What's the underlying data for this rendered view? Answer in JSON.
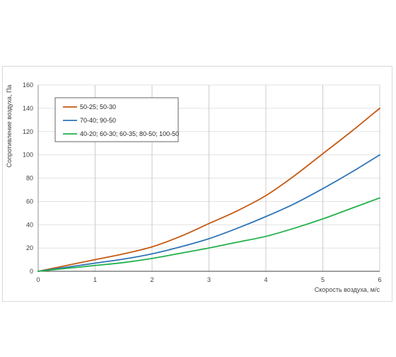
{
  "chart_data": {
    "type": "line",
    "title": "",
    "xlabel": "Скорость воздуха, м/с",
    "ylabel": "Сопротивление воздуха, Па",
    "xlim": [
      0,
      6
    ],
    "ylim": [
      0,
      160
    ],
    "x_ticks": [
      "0",
      "1",
      "2",
      "3",
      "4",
      "5",
      "6"
    ],
    "y_ticks": [
      "0",
      "20",
      "40",
      "60",
      "80",
      "100",
      "120",
      "140",
      "160"
    ],
    "grid": true,
    "legend_position": "top-left",
    "series": [
      {
        "name": "50-25; 50-30",
        "color": "#c55a11",
        "x": [
          0,
          0.5,
          1,
          1.5,
          2,
          2.5,
          3,
          3.5,
          4,
          4.5,
          5,
          5.5,
          6
        ],
        "y": [
          0,
          5,
          10,
          15,
          21,
          30,
          41,
          52,
          65,
          82,
          101,
          120,
          140
        ]
      },
      {
        "name": "70-40; 90-50",
        "color": "#2e75b6",
        "x": [
          0,
          0.5,
          1,
          1.5,
          2,
          2.5,
          3,
          3.5,
          4,
          4.5,
          5,
          5.5,
          6
        ],
        "y": [
          0,
          3.5,
          7,
          10.5,
          15,
          21,
          28,
          37,
          47,
          58,
          71,
          85,
          100
        ]
      },
      {
        "name": "40-20; 60-30; 60-35; 80-50; 100-50",
        "color": "#22b14c",
        "x": [
          0,
          0.5,
          1,
          1.5,
          2,
          2.5,
          3,
          3.5,
          4,
          4.5,
          5,
          5.5,
          6
        ],
        "y": [
          0,
          2.5,
          5,
          7.5,
          11,
          15.5,
          20,
          25,
          30,
          37,
          45,
          54,
          63
        ]
      }
    ]
  }
}
